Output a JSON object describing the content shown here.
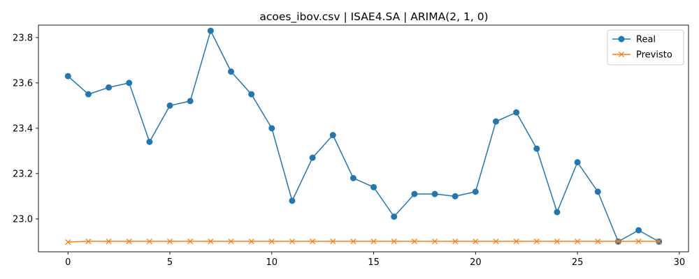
{
  "chart_data": {
    "type": "line",
    "title": "acoes_ibov.csv | ISAE4.SA | ARIMA(2, 1, 0)",
    "xlabel": "",
    "ylabel": "",
    "xlim": [
      -1.45,
      30.45
    ],
    "ylim": [
      22.855,
      23.855
    ],
    "x_ticks": [
      0,
      5,
      10,
      15,
      20,
      25,
      30
    ],
    "y_ticks": [
      23.0,
      23.2,
      23.4,
      23.6,
      23.8
    ],
    "y_tick_labels": [
      "23.0",
      "23.2",
      "23.4",
      "23.6",
      "23.8"
    ],
    "grid": false,
    "legend_position": "top-right",
    "x": [
      0,
      1,
      2,
      3,
      4,
      5,
      6,
      7,
      8,
      9,
      10,
      11,
      12,
      13,
      14,
      15,
      16,
      17,
      18,
      19,
      20,
      21,
      22,
      23,
      24,
      25,
      26,
      27,
      28,
      29
    ],
    "series": [
      {
        "name": "Real",
        "color": "#1f77b4",
        "marker": "circle",
        "values": [
          23.63,
          23.55,
          23.58,
          23.6,
          23.34,
          23.5,
          23.52,
          23.83,
          23.65,
          23.55,
          23.4,
          23.08,
          23.27,
          23.37,
          23.18,
          23.14,
          23.01,
          23.11,
          23.11,
          23.1,
          23.12,
          23.43,
          23.47,
          23.31,
          23.03,
          23.25,
          23.12,
          22.9,
          22.95,
          22.9
        ]
      },
      {
        "name": "Previsto",
        "color": "#ff7f0e",
        "marker": "x",
        "values": [
          22.898,
          22.901,
          22.901,
          22.901,
          22.901,
          22.901,
          22.901,
          22.901,
          22.901,
          22.901,
          22.901,
          22.901,
          22.901,
          22.901,
          22.901,
          22.901,
          22.901,
          22.901,
          22.901,
          22.901,
          22.901,
          22.901,
          22.901,
          22.901,
          22.901,
          22.901,
          22.901,
          22.901,
          22.901,
          22.901
        ]
      }
    ]
  }
}
